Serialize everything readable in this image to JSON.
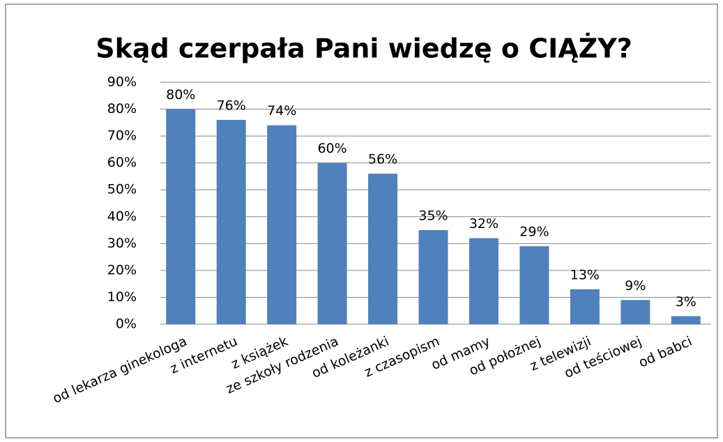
{
  "chart_data": {
    "type": "bar",
    "title": "Skąd czerpała Pani wiedzę o CIĄŻY?",
    "categories": [
      "od lekarza ginekologa",
      "z internetu",
      "z książek",
      "ze szkoły rodzenia",
      "od koleżanki",
      "z czasopism",
      "od mamy",
      "od położnej",
      "z telewizji",
      "od teściowej",
      "od babci"
    ],
    "values": [
      80,
      76,
      74,
      60,
      56,
      35,
      32,
      29,
      13,
      9,
      3
    ],
    "value_labels": [
      "80%",
      "76%",
      "74%",
      "60%",
      "56%",
      "35%",
      "32%",
      "29%",
      "13%",
      "9%",
      "3%"
    ],
    "color": "#4f81bd",
    "ylim": [
      0,
      90
    ],
    "yticks": [
      {
        "value": 0,
        "label": "0%"
      },
      {
        "value": 10,
        "label": "10%"
      },
      {
        "value": 20,
        "label": "20%"
      },
      {
        "value": 30,
        "label": "30%"
      },
      {
        "value": 40,
        "label": "40%"
      },
      {
        "value": 50,
        "label": "50%"
      },
      {
        "value": 60,
        "label": "60%"
      },
      {
        "value": 70,
        "label": "70%"
      },
      {
        "value": 80,
        "label": "80%"
      },
      {
        "value": 90,
        "label": "90%"
      }
    ],
    "grid": true
  }
}
